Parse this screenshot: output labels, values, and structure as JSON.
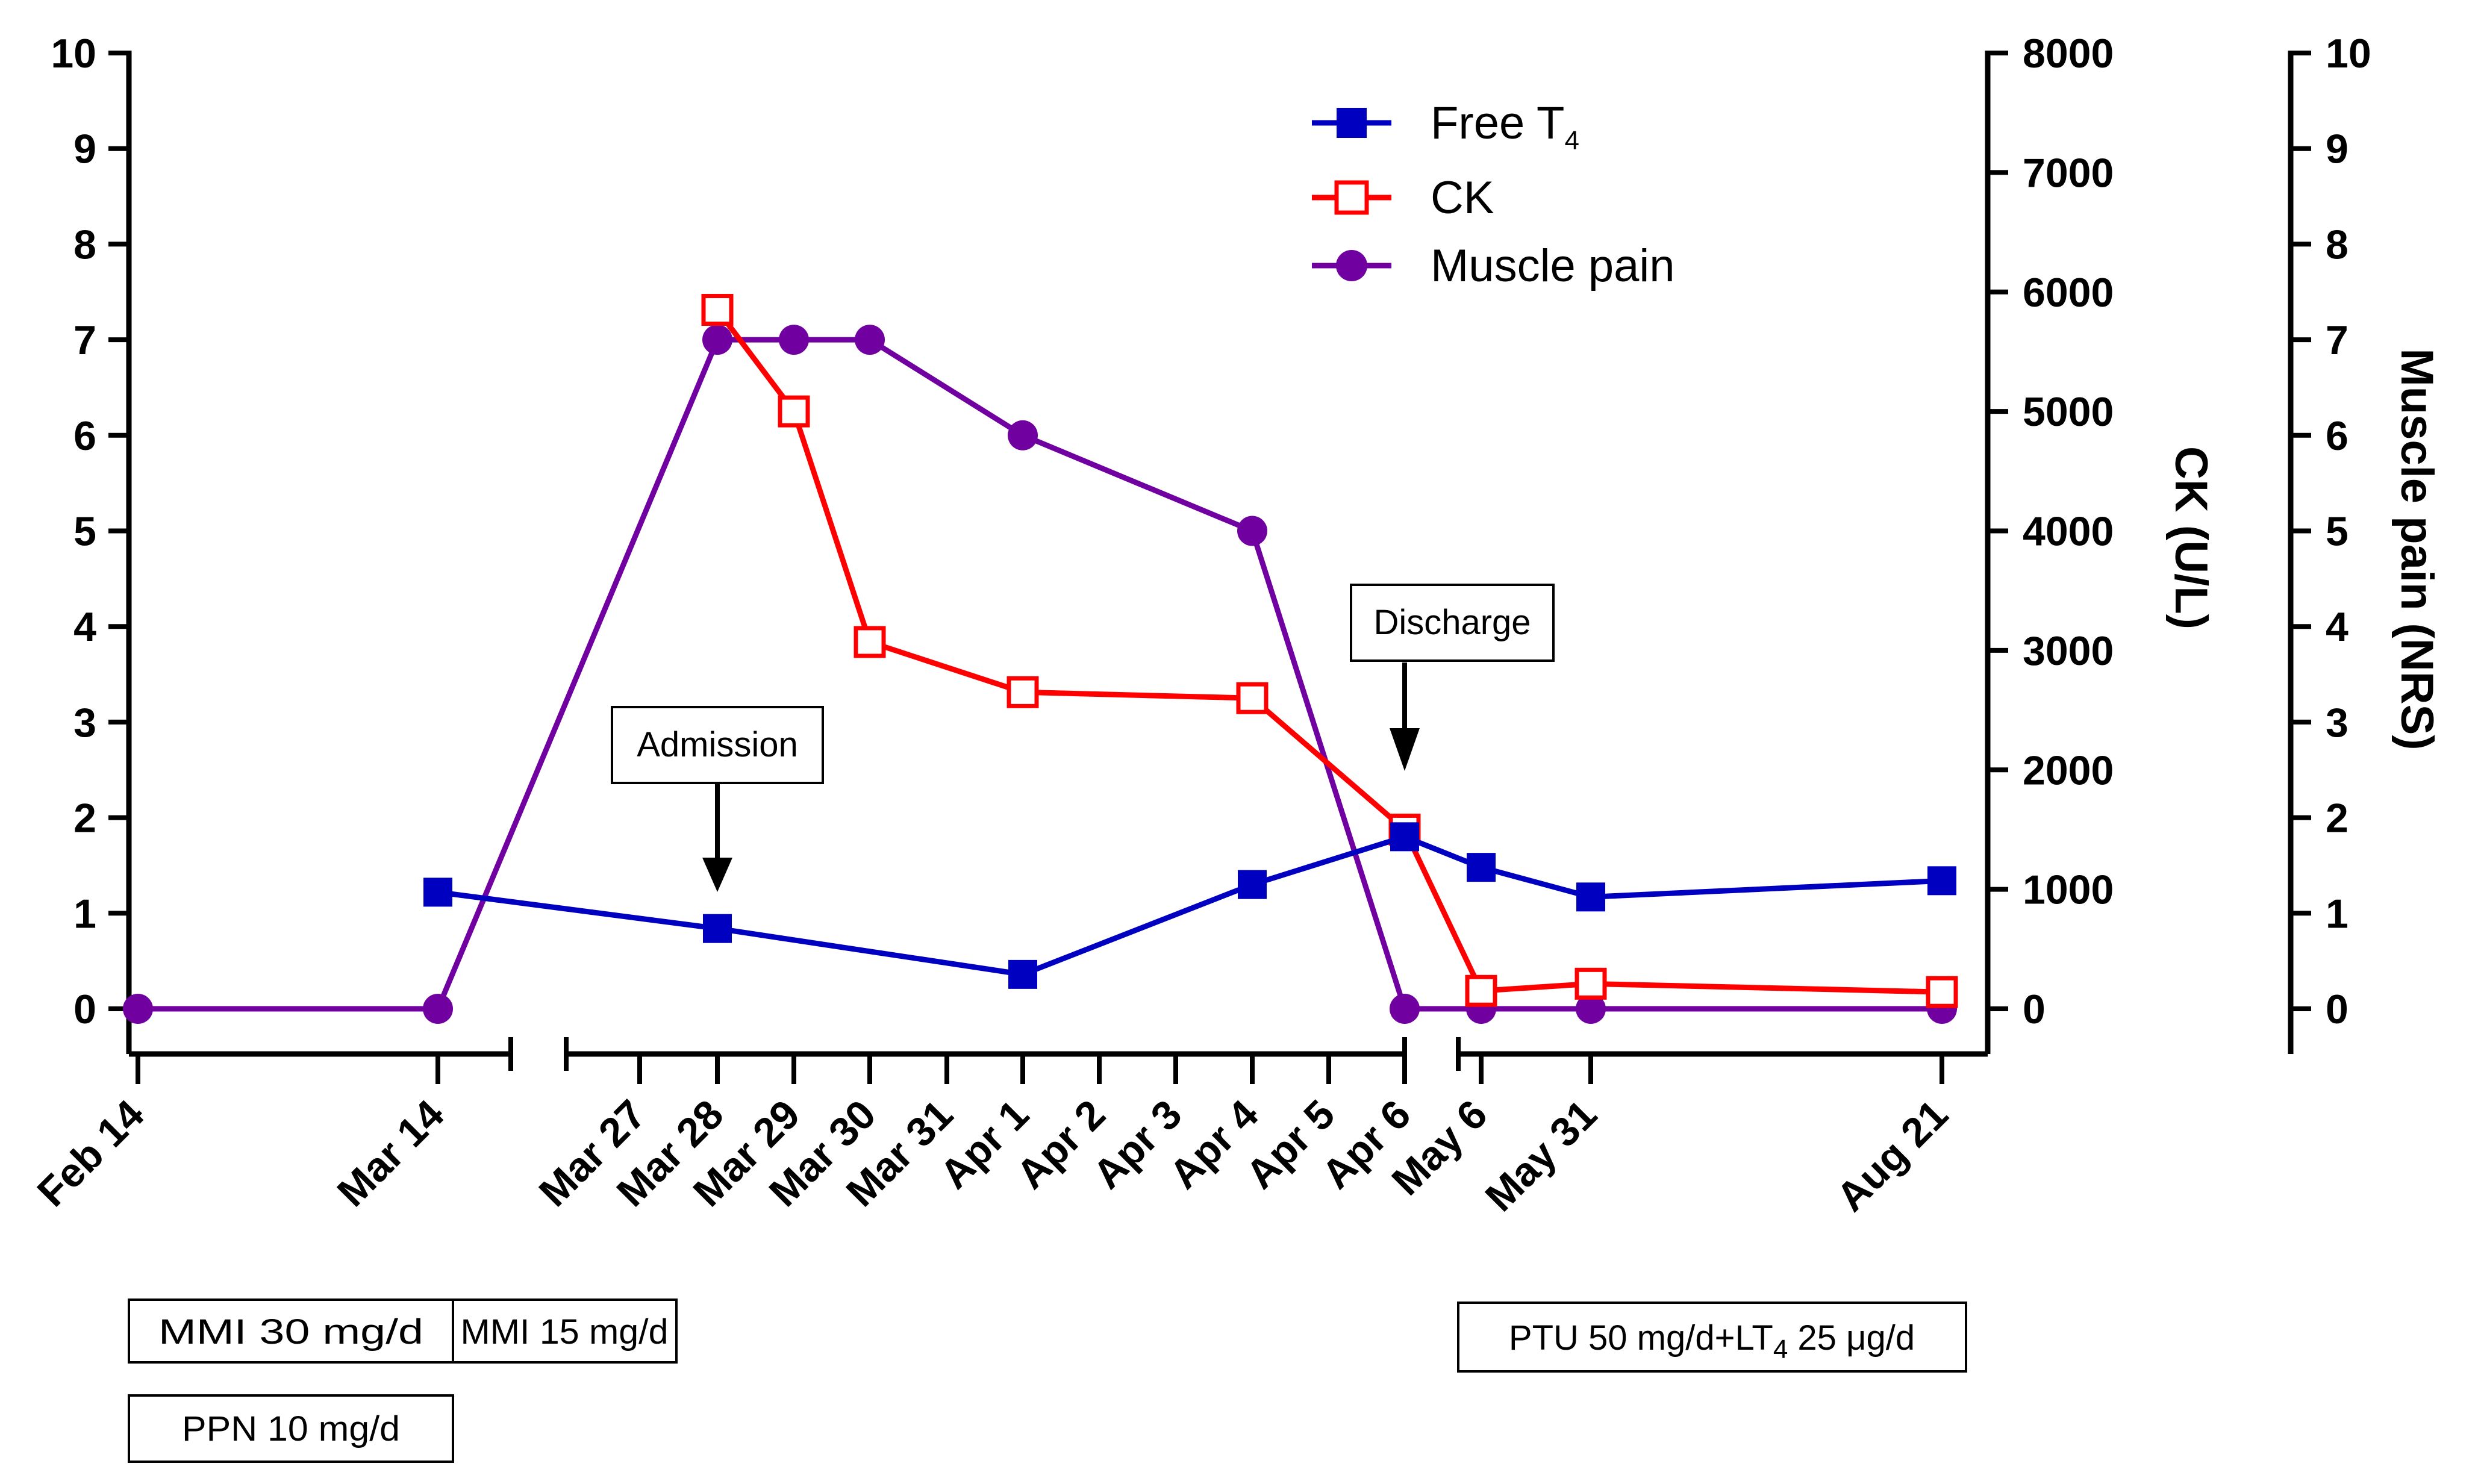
{
  "chart_data": {
    "type": "line",
    "categories": [
      "Feb 14",
      "Mar 14",
      "Mar 27",
      "Mar 28",
      "Mar 29",
      "Mar 30",
      "Mar 31",
      "Apr 1",
      "Apr 2",
      "Apr 3",
      "Apr 4",
      "Apr 5",
      "Apr 6",
      "May 6",
      "May 31",
      "Aug 21"
    ],
    "axes": {
      "left": {
        "ylim": [
          0,
          10
        ],
        "ticks": [
          0,
          1,
          2,
          3,
          4,
          5,
          6,
          7,
          8,
          9,
          10
        ],
        "labels": [
          "0",
          "1",
          "2",
          "3",
          "4",
          "5",
          "6",
          "7",
          "8",
          "9",
          "10"
        ],
        "title": ""
      },
      "right_ck": {
        "ylim": [
          0,
          8000
        ],
        "ticks": [
          0,
          1000,
          2000,
          3000,
          4000,
          5000,
          6000,
          7000,
          8000
        ],
        "labels": [
          "0",
          "1000",
          "2000",
          "3000",
          "4000",
          "5000",
          "6000",
          "7000",
          "8000"
        ],
        "title": "CK (U/L)"
      },
      "right_pain": {
        "ylim": [
          0,
          10
        ],
        "ticks": [
          0,
          1,
          2,
          3,
          4,
          5,
          6,
          7,
          8,
          9,
          10
        ],
        "labels": [
          "0",
          "1",
          "2",
          "3",
          "4",
          "5",
          "6",
          "7",
          "8",
          "9",
          "10"
        ],
        "title": "Muscle pain (NRS)"
      }
    },
    "series": [
      {
        "name": "Free T4",
        "legend_main": "Free T",
        "legend_sub": "4",
        "axis": "left",
        "color": "#0000c0",
        "marker": "filled-square",
        "points": [
          [
            "Mar 14",
            1.22
          ],
          [
            "Mar 28",
            0.84
          ],
          [
            "Apr 1",
            0.36
          ],
          [
            "Apr 4",
            1.3
          ],
          [
            "Apr 6",
            1.8
          ],
          [
            "May 6",
            1.48
          ],
          [
            "May 31",
            1.17
          ],
          [
            "Aug 21",
            1.34
          ]
        ]
      },
      {
        "name": "CK",
        "legend_main": "CK",
        "legend_sub": "",
        "axis": "right_ck",
        "color": "#ff0000",
        "marker": "open-square",
        "points": [
          [
            "Mar 28",
            5850
          ],
          [
            "Mar 29",
            5000
          ],
          [
            "Mar 30",
            3070
          ],
          [
            "Apr 1",
            2650
          ],
          [
            "Apr 4",
            2600
          ],
          [
            "Apr 6",
            1500
          ],
          [
            "May 6",
            150
          ],
          [
            "May 31",
            210
          ],
          [
            "Aug 21",
            140
          ]
        ]
      },
      {
        "name": "Muscle pain",
        "legend_main": "Muscle pain",
        "legend_sub": "",
        "axis": "right_pain",
        "color": "#7000a0",
        "marker": "filled-circle",
        "points": [
          [
            "Feb 14",
            0
          ],
          [
            "Mar 14",
            0
          ],
          [
            "Mar 28",
            7
          ],
          [
            "Mar 29",
            7
          ],
          [
            "Mar 30",
            7
          ],
          [
            "Apr 1",
            6
          ],
          [
            "Apr 4",
            5
          ],
          [
            "Apr 6",
            0
          ],
          [
            "May 6",
            0
          ],
          [
            "May 31",
            0
          ],
          [
            "Aug 21",
            0
          ]
        ]
      }
    ],
    "annotations": [
      {
        "text": "Admission",
        "at": "Mar 28"
      },
      {
        "text": "Discharge",
        "at": "Apr 6"
      }
    ],
    "medications": [
      {
        "text": "MMI 30 mg/d",
        "sub": ""
      },
      {
        "text": "MMI 15 mg/d",
        "sub": ""
      },
      {
        "text": "PPN 10 mg/d",
        "sub": ""
      },
      {
        "text": "PTU 50 mg/d+LT",
        "sub": "4",
        "suffix": " 25 μg/d"
      }
    ]
  }
}
